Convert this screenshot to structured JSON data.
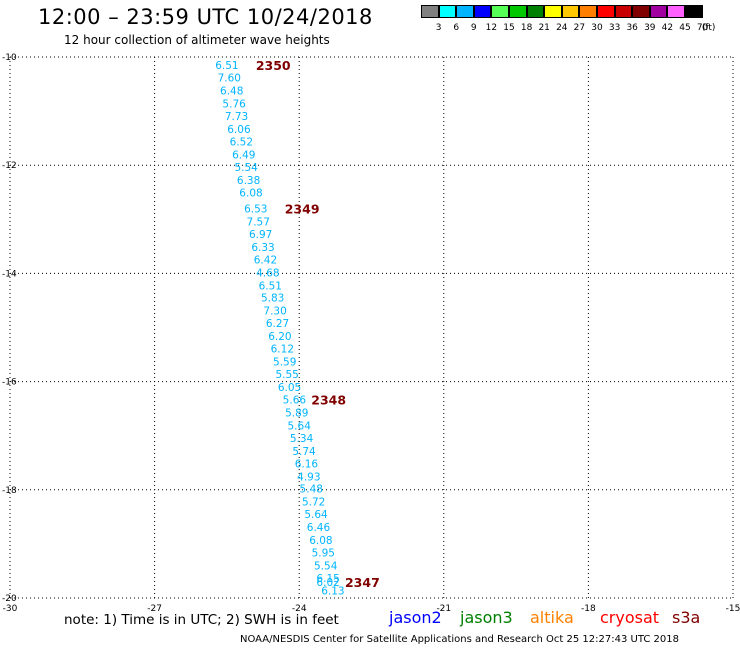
{
  "title": "12:00 – 23:59 UTC 10/24/2018",
  "subtitle": "12 hour collection of altimeter wave heights",
  "color_scale": {
    "unit": "(ft)",
    "labels": [
      "3",
      "6",
      "9",
      "12",
      "15",
      "18",
      "21",
      "24",
      "27",
      "30",
      "33",
      "36",
      "39",
      "42",
      "45",
      "70"
    ],
    "colors": [
      "#808080",
      "#00ffff",
      "#00b4ff",
      "#0000ff",
      "#55ff55",
      "#00c800",
      "#008000",
      "#ffff00",
      "#ffc800",
      "#ff8000",
      "#ff0000",
      "#c80000",
      "#800000",
      "#a000a0",
      "#ff60ff",
      "#000000"
    ]
  },
  "chart_data": {
    "type": "scatter",
    "xlim": [
      -30,
      -15
    ],
    "ylim": [
      -20,
      -10
    ],
    "x_ticks": [
      {
        "value": -30,
        "label": "-30"
      },
      {
        "value": -27,
        "label": "-27"
      },
      {
        "value": -24,
        "label": "-24"
      },
      {
        "value": -21,
        "label": "-21"
      },
      {
        "value": -18,
        "label": "-18"
      },
      {
        "value": -15,
        "label": "-15"
      }
    ],
    "y_ticks": [
      {
        "value": -10,
        "label": "-10"
      },
      {
        "value": -12,
        "label": "-12"
      },
      {
        "value": -14,
        "label": "-14"
      },
      {
        "value": -16,
        "label": "-16"
      },
      {
        "value": -18,
        "label": "-18"
      },
      {
        "value": -20,
        "label": "-20"
      }
    ],
    "grid": true,
    "series": [
      {
        "color": "#00b4ff",
        "points": [
          {
            "lon": -25.5,
            "lat": -10.15,
            "swh": "6.51"
          },
          {
            "lon": -25.45,
            "lat": -10.38,
            "swh": "7.60"
          },
          {
            "lon": -25.4,
            "lat": -10.62,
            "swh": "6.48"
          },
          {
            "lon": -25.35,
            "lat": -10.86,
            "swh": "5.76"
          },
          {
            "lon": -25.3,
            "lat": -11.09,
            "swh": "7.73"
          },
          {
            "lon": -25.25,
            "lat": -11.33,
            "swh": "6.06"
          },
          {
            "lon": -25.2,
            "lat": -11.56,
            "swh": "6.52"
          },
          {
            "lon": -25.15,
            "lat": -11.8,
            "swh": "6.49"
          },
          {
            "lon": -25.1,
            "lat": -12.03,
            "swh": "5.54"
          },
          {
            "lon": -25.05,
            "lat": -12.27,
            "swh": "6.38"
          },
          {
            "lon": -25.0,
            "lat": -12.5,
            "swh": "6.08"
          },
          {
            "lon": -24.9,
            "lat": -12.8,
            "swh": "6.53"
          },
          {
            "lon": -24.85,
            "lat": -13.04,
            "swh": "7.57"
          },
          {
            "lon": -24.8,
            "lat": -13.27,
            "swh": "6.97"
          },
          {
            "lon": -24.75,
            "lat": -13.51,
            "swh": "6.33"
          },
          {
            "lon": -24.7,
            "lat": -13.74,
            "swh": "6.42"
          },
          {
            "lon": -24.65,
            "lat": -13.98,
            "swh": "4.68"
          },
          {
            "lon": -24.6,
            "lat": -14.22,
            "swh": "6.51"
          },
          {
            "lon": -24.55,
            "lat": -14.45,
            "swh": "5.83"
          },
          {
            "lon": -24.5,
            "lat": -14.69,
            "swh": "7.30"
          },
          {
            "lon": -24.45,
            "lat": -14.92,
            "swh": "6.27"
          },
          {
            "lon": -24.4,
            "lat": -15.16,
            "swh": "6.20"
          },
          {
            "lon": -24.35,
            "lat": -15.39,
            "swh": "6.12"
          },
          {
            "lon": -24.3,
            "lat": -15.63,
            "swh": "5.59"
          },
          {
            "lon": -24.25,
            "lat": -15.86,
            "swh": "5.55"
          },
          {
            "lon": -24.2,
            "lat": -16.1,
            "swh": "6.05"
          },
          {
            "lon": -24.1,
            "lat": -16.33,
            "swh": "5.66"
          },
          {
            "lon": -24.05,
            "lat": -16.57,
            "swh": "5.89"
          },
          {
            "lon": -24.0,
            "lat": -16.81,
            "swh": "5.64"
          },
          {
            "lon": -23.95,
            "lat": -17.04,
            "swh": "5.34"
          },
          {
            "lon": -23.9,
            "lat": -17.28,
            "swh": "5.74"
          },
          {
            "lon": -23.85,
            "lat": -17.51,
            "swh": "6.16"
          },
          {
            "lon": -23.8,
            "lat": -17.75,
            "swh": "4.93"
          },
          {
            "lon": -23.75,
            "lat": -17.98,
            "swh": "5.48"
          },
          {
            "lon": -23.7,
            "lat": -18.22,
            "swh": "5.72"
          },
          {
            "lon": -23.65,
            "lat": -18.45,
            "swh": "5.64"
          },
          {
            "lon": -23.6,
            "lat": -18.69,
            "swh": "6.46"
          },
          {
            "lon": -23.55,
            "lat": -18.93,
            "swh": "6.08"
          },
          {
            "lon": -23.5,
            "lat": -19.16,
            "swh": "5.95"
          },
          {
            "lon": -23.45,
            "lat": -19.4,
            "swh": "5.54"
          },
          {
            "lon": -23.4,
            "lat": -19.63,
            "swh": "6.15"
          },
          {
            "lon": -23.4,
            "lat": -19.7,
            "swh": "6.02"
          },
          {
            "lon": -23.3,
            "lat": -19.86,
            "swh": "6.13"
          }
        ]
      }
    ],
    "annotations": [
      {
        "lon": -24.9,
        "lat": -10.15,
        "text": "2350",
        "color": "#800000"
      },
      {
        "lon": -24.3,
        "lat": -12.8,
        "text": "2349",
        "color": "#800000"
      },
      {
        "lon": -23.75,
        "lat": -16.33,
        "text": "2348",
        "color": "#800000"
      },
      {
        "lon": -23.05,
        "lat": -19.7,
        "text": "2347",
        "color": "#800000"
      }
    ]
  },
  "note": "note: 1) Time is in UTC; 2) SWH is in feet",
  "satellites": [
    {
      "name": "jason2",
      "color": "#0000ff"
    },
    {
      "name": "jason3",
      "color": "#008000"
    },
    {
      "name": "altika",
      "color": "#ff8000"
    },
    {
      "name": "cryosat",
      "color": "#ff0000"
    },
    {
      "name": "s3a",
      "color": "#800000"
    }
  ],
  "footer": "NOAA/NESDIS Center for Satellite Applications and Research   Oct 25 12:27:43 UTC 2018"
}
